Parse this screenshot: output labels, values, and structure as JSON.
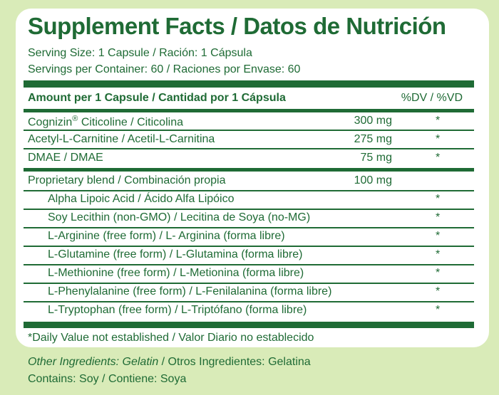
{
  "title": "Supplement Facts / Datos de Nutrición",
  "serving_size": "Serving Size: 1 Capsule / Ración: 1 Cápsula",
  "servings_per_container": "Servings per Container: 60 / Raciones por Envase: 60",
  "table_header": {
    "amount_label": "Amount per 1 Capsule / Cantidad por 1 Cápsula",
    "dv_label": "%DV / %VD"
  },
  "rows": [
    {
      "name": "Cognizin",
      "reg": "®",
      "name_rest": " Citicoline / Citicolina",
      "amount": "300 mg",
      "dv": "*"
    },
    {
      "name": "Acetyl-L-Carnitine / Acetil-L-Carnitina",
      "amount": "275 mg",
      "dv": "*"
    },
    {
      "name": "DMAE / DMAE",
      "amount": "75 mg",
      "dv": "*"
    },
    {
      "name": "Proprietary blend / Combinación propia",
      "amount": "100 mg",
      "dv": ""
    },
    {
      "name": "Alpha Lipoic Acid / Ácido Alfa Lipóico",
      "amount": "",
      "dv": "*"
    },
    {
      "name": "Soy Lecithin (non-GMO) / Lecitina de Soya (no-MG)",
      "amount": "",
      "dv": "*"
    },
    {
      "name": "L-Arginine (free form) / L- Arginina (forma libre)",
      "amount": "",
      "dv": "*"
    },
    {
      "name": "L-Glutamine (free form) / L-Glutamina (forma libre)",
      "amount": "",
      "dv": "*"
    },
    {
      "name": "L-Methionine (free form) / L-Metionina (forma libre)",
      "amount": "",
      "dv": "*"
    },
    {
      "name": "L-Phenylalanine (free form) / L-Fenilalanina (forma libre)",
      "amount": "",
      "dv": "*"
    },
    {
      "name": "L-Tryptophan (free form) / L-Triptófano (forma libre)",
      "amount": "",
      "dv": "*"
    }
  ],
  "footnote": "*Daily Value not established / Valor Diario no establecido",
  "other_ingredients_label": "Other Ingredients: Gelatin",
  "other_ingredients_rest": " / Otros Ingredientes: Gelatina",
  "contains": "Contains: Soy / Contiene: Soya",
  "colors": {
    "brand_green": "#1f6b35",
    "background": "#d9ebb8",
    "panel": "#ffffff"
  }
}
